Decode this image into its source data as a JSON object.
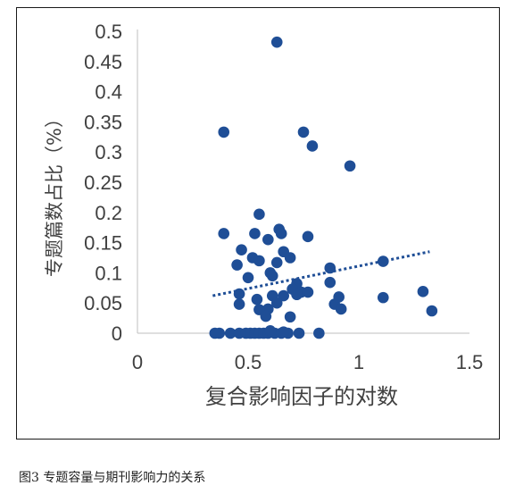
{
  "caption": "图3  专题容量与期刊影响力的关系",
  "chart_data": {
    "type": "scatter",
    "xlabel": "复合影响因子的对数",
    "ylabel": "专题篇数占比（%）",
    "xlim": [
      0,
      1.5
    ],
    "ylim": [
      0,
      0.5
    ],
    "xticks": [
      "0",
      "0.5",
      "1",
      "1.5"
    ],
    "yticks": [
      "0",
      "0.05",
      "0.1",
      "0.15",
      "0.2",
      "0.25",
      "0.3",
      "0.35",
      "0.4",
      "0.45",
      "0.5"
    ],
    "grid": false,
    "legend": "none",
    "trendline": {
      "type": "linear",
      "style": "dotted",
      "x": [
        0.34,
        1.32
      ],
      "y": [
        0.062,
        0.135
      ]
    },
    "marker_color": "#1f4e96",
    "series": [
      {
        "points": [
          [
            0.63,
            0.482
          ],
          [
            0.39,
            0.333
          ],
          [
            0.75,
            0.333
          ],
          [
            0.79,
            0.31
          ],
          [
            0.96,
            0.277
          ],
          [
            0.55,
            0.197
          ],
          [
            0.39,
            0.165
          ],
          [
            0.64,
            0.172
          ],
          [
            0.53,
            0.165
          ],
          [
            0.65,
            0.165
          ],
          [
            0.59,
            0.155
          ],
          [
            0.77,
            0.16
          ],
          [
            0.47,
            0.138
          ],
          [
            0.66,
            0.135
          ],
          [
            0.52,
            0.125
          ],
          [
            0.69,
            0.125
          ],
          [
            0.45,
            0.113
          ],
          [
            0.55,
            0.12
          ],
          [
            0.63,
            0.117
          ],
          [
            1.11,
            0.119
          ],
          [
            0.6,
            0.1
          ],
          [
            0.61,
            0.095
          ],
          [
            0.87,
            0.108
          ],
          [
            0.5,
            0.092
          ],
          [
            0.72,
            0.082
          ],
          [
            0.7,
            0.073
          ],
          [
            0.74,
            0.068
          ],
          [
            0.72,
            0.064
          ],
          [
            0.77,
            0.068
          ],
          [
            0.87,
            0.084
          ],
          [
            0.46,
            0.065
          ],
          [
            0.66,
            0.062
          ],
          [
            0.61,
            0.062
          ],
          [
            0.54,
            0.056
          ],
          [
            0.46,
            0.048
          ],
          [
            0.63,
            0.05
          ],
          [
            0.89,
            0.048
          ],
          [
            0.91,
            0.06
          ],
          [
            1.11,
            0.059
          ],
          [
            1.29,
            0.069
          ],
          [
            0.59,
            0.04
          ],
          [
            0.55,
            0.039
          ],
          [
            0.92,
            0.04
          ],
          [
            0.58,
            0.028
          ],
          [
            0.69,
            0.027
          ],
          [
            1.33,
            0.037
          ],
          [
            0.35,
            0.0
          ],
          [
            0.37,
            0.0
          ],
          [
            0.42,
            0.0
          ],
          [
            0.46,
            0.0
          ],
          [
            0.49,
            0.0
          ],
          [
            0.51,
            0.0
          ],
          [
            0.53,
            0.0
          ],
          [
            0.55,
            0.0
          ],
          [
            0.57,
            0.0
          ],
          [
            0.59,
            0.0
          ],
          [
            0.62,
            0.0
          ],
          [
            0.65,
            0.0
          ],
          [
            0.68,
            0.0
          ],
          [
            0.73,
            0.0
          ],
          [
            0.82,
            0.0
          ],
          [
            0.66,
            0.002
          ],
          [
            0.6,
            0.004
          ]
        ]
      }
    ]
  }
}
